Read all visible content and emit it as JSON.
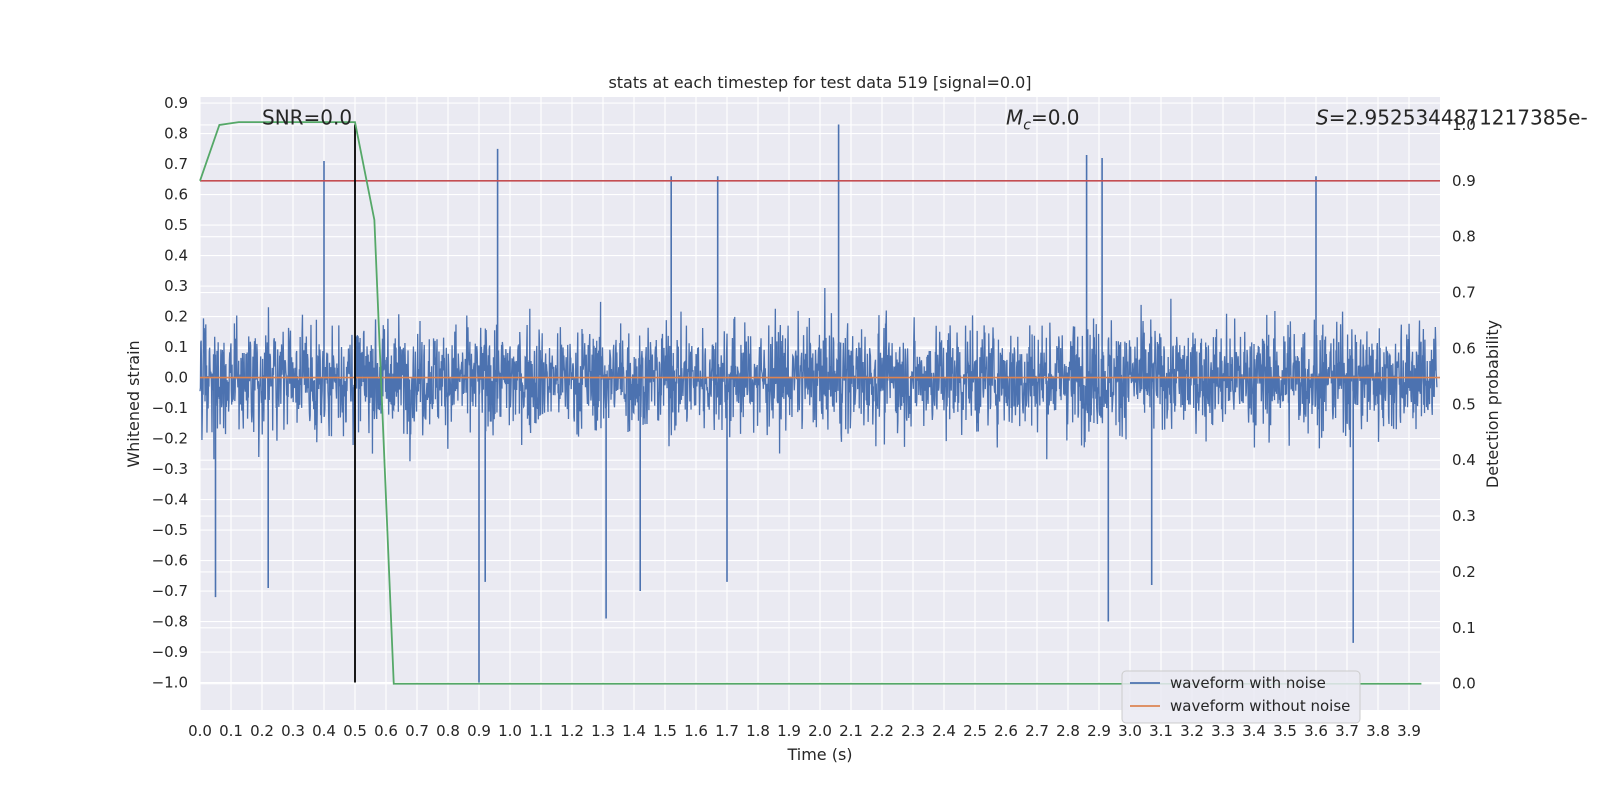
{
  "chart_data": {
    "type": "line",
    "title": "stats at each timestep for test data 519 [signal=0.0]",
    "xlabel": "Time (s)",
    "ylabel": "Whitened strain",
    "y2label": "Detection probability",
    "xlim": [
      0.0,
      4.0
    ],
    "ylim": [
      -1.09,
      0.92
    ],
    "y2lim": [
      -0.047,
      1.05
    ],
    "xticks": [
      0.0,
      0.1,
      0.2,
      0.3,
      0.4,
      0.5,
      0.6,
      0.7,
      0.8,
      0.9,
      1.0,
      1.1,
      1.2,
      1.3,
      1.4,
      1.5,
      1.6,
      1.7,
      1.8,
      1.9,
      2.0,
      2.1,
      2.2,
      2.3,
      2.4,
      2.5,
      2.6,
      2.7,
      2.8,
      2.9,
      3.0,
      3.1,
      3.2,
      3.3,
      3.4,
      3.5,
      3.6,
      3.7,
      3.8,
      3.9
    ],
    "xtick_labels": [
      "0.0",
      "0.1",
      "0.2",
      "0.3",
      "0.4",
      "0.5",
      "0.6",
      "0.7",
      "0.8",
      "0.9",
      "1.0",
      "1.1",
      "1.2",
      "1.3",
      "1.4",
      "1.5",
      "1.6",
      "1.7",
      "1.8",
      "1.9",
      "2.0",
      "2.1",
      "2.2",
      "2.3",
      "2.4",
      "2.5",
      "2.6",
      "2.7",
      "2.8",
      "2.9",
      "3.0",
      "3.1",
      "3.2",
      "3.3",
      "3.4",
      "3.5",
      "3.6",
      "3.7",
      "3.8",
      "3.9"
    ],
    "yticks": [
      0.9,
      0.8,
      0.7,
      0.6,
      0.5,
      0.4,
      0.3,
      0.2,
      0.1,
      0.0,
      -0.1,
      -0.2,
      -0.3,
      -0.4,
      -0.5,
      -0.6,
      -0.7,
      -0.8,
      -0.9,
      -1.0
    ],
    "ytick_labels": [
      "0.9",
      "0.8",
      "0.7",
      "0.6",
      "0.5",
      "0.4",
      "0.3",
      "0.2",
      "0.1",
      "0.0",
      "−0.1",
      "−0.2",
      "−0.3",
      "−0.4",
      "−0.5",
      "−0.6",
      "−0.7",
      "−0.8",
      "−0.9",
      "−1.0"
    ],
    "y2ticks": [
      1.0,
      0.9,
      0.8,
      0.7,
      0.6,
      0.5,
      0.4,
      0.3,
      0.2,
      0.1,
      0.0
    ],
    "y2tick_labels": [
      "1.0",
      "0.9",
      "0.8",
      "0.7",
      "0.6",
      "0.5",
      "0.4",
      "0.3",
      "0.2",
      "0.1",
      "0.0"
    ],
    "grid": true,
    "legend_position": "lower-right",
    "series": [
      {
        "name": "waveform with noise",
        "axis": "left",
        "color": "#4c72b0",
        "style": "dense noise",
        "typical_range": [
          -0.45,
          0.45
        ],
        "peaks": [
          {
            "x": 0.4,
            "y": 0.71
          },
          {
            "x": 0.96,
            "y": 0.75
          },
          {
            "x": 1.52,
            "y": 0.66
          },
          {
            "x": 1.67,
            "y": 0.66
          },
          {
            "x": 2.06,
            "y": 0.83
          },
          {
            "x": 2.86,
            "y": 0.73
          },
          {
            "x": 2.91,
            "y": 0.72
          },
          {
            "x": 3.6,
            "y": 0.66
          }
        ],
        "troughs": [
          {
            "x": 0.05,
            "y": -0.72
          },
          {
            "x": 0.22,
            "y": -0.69
          },
          {
            "x": 0.9,
            "y": -1.0
          },
          {
            "x": 0.92,
            "y": -0.67
          },
          {
            "x": 1.31,
            "y": -0.79
          },
          {
            "x": 1.42,
            "y": -0.7
          },
          {
            "x": 1.7,
            "y": -0.67
          },
          {
            "x": 2.93,
            "y": -0.8
          },
          {
            "x": 3.07,
            "y": -0.68
          },
          {
            "x": 3.72,
            "y": -0.87
          }
        ]
      },
      {
        "name": "waveform without noise",
        "axis": "left",
        "color": "#dd8452",
        "x": [
          0.0,
          4.0
        ],
        "y": [
          0.0,
          0.0
        ]
      },
      {
        "axis": "right",
        "color": "#55a868",
        "x": [
          0.0,
          0.0625,
          0.125,
          0.1875,
          0.25,
          0.3125,
          0.375,
          0.4375,
          0.5,
          0.5625,
          0.625,
          0.6875,
          1.0,
          2.0,
          3.0,
          3.94
        ],
        "y": [
          0.9,
          1.0,
          1.005,
          1.005,
          1.005,
          1.005,
          1.005,
          1.005,
          1.005,
          0.83,
          0.0,
          0.0,
          0.0,
          0.0,
          0.0,
          0.0
        ]
      }
    ],
    "reference_lines": [
      {
        "orientation": "horizontal",
        "axis": "right",
        "y": 0.9,
        "color": "#c44e52"
      },
      {
        "orientation": "vertical",
        "x": 0.5,
        "y_from": -1.0,
        "y_to": 0.83,
        "color": "#000000"
      }
    ],
    "annotations": [
      {
        "text": "SNR=0.0",
        "x": 0.2,
        "y": 0.83
      },
      {
        "text_html": "M<sub>c</sub>=0.0",
        "text": "Mc=0.0",
        "x": 2.6,
        "y": 0.83
      },
      {
        "text": "S=2.9525344871217385e-",
        "x": 3.6,
        "y": 0.83
      }
    ]
  }
}
